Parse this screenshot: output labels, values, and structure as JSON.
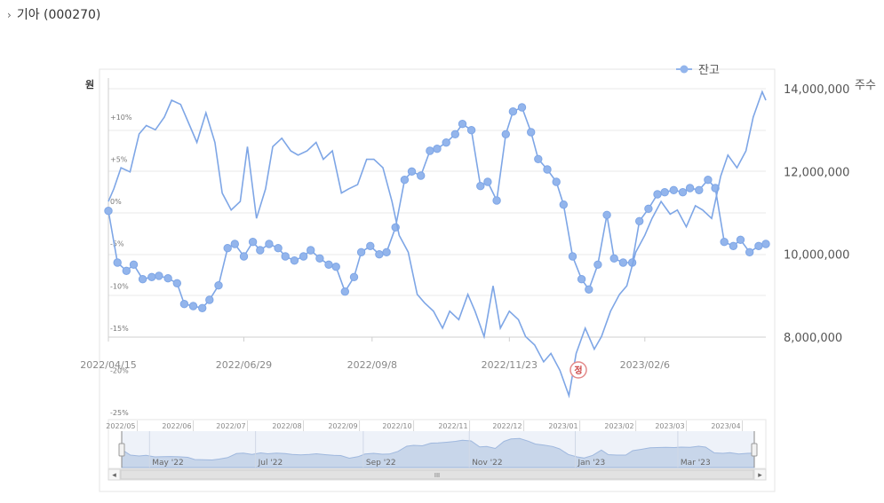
{
  "header": {
    "caret": "›",
    "title": "기아 (000270)"
  },
  "chart_data": {
    "type": "line",
    "left_unit": "원",
    "right_unit": "주수",
    "legend": {
      "label": "잔고",
      "placement": "top-right"
    },
    "y_left_ticks": [
      "+10%",
      "+5%",
      "0%",
      "-5%",
      "-10%",
      "-15%",
      "-20%",
      "-25%"
    ],
    "y_right_ticks": [
      "14,000,000",
      "12,000,000",
      "10,000,000",
      "8,000,000"
    ],
    "y_right_values": [
      14000000,
      12000000,
      10000000,
      8000000
    ],
    "x_ticks": [
      "2022/04/15",
      "2022/06/29",
      "2022/09/8",
      "2022/11/23",
      "2023/02/6"
    ],
    "marker_label": "정",
    "series": [
      {
        "name": "잔고",
        "color": "#7ea6e6",
        "markers": true,
        "x": [
          "2022-04-15",
          "2022-04-20",
          "2022-04-25",
          "2022-04-29",
          "2022-05-04",
          "2022-05-09",
          "2022-05-13",
          "2022-05-18",
          "2022-05-23",
          "2022-05-27",
          "2022-06-01",
          "2022-06-06",
          "2022-06-10",
          "2022-06-15",
          "2022-06-20",
          "2022-06-24",
          "2022-06-29",
          "2022-07-04",
          "2022-07-08",
          "2022-07-13",
          "2022-07-18",
          "2022-07-22",
          "2022-07-27",
          "2022-08-01",
          "2022-08-05",
          "2022-08-10",
          "2022-08-15",
          "2022-08-19",
          "2022-08-24",
          "2022-08-29",
          "2022-09-02",
          "2022-09-07",
          "2022-09-12",
          "2022-09-16",
          "2022-09-21",
          "2022-09-26",
          "2022-09-30",
          "2022-10-05",
          "2022-10-10",
          "2022-10-14",
          "2022-10-19",
          "2022-10-24",
          "2022-10-28",
          "2022-11-02",
          "2022-11-07",
          "2022-11-11",
          "2022-11-16",
          "2022-11-21",
          "2022-11-25",
          "2022-11-30",
          "2022-12-05",
          "2022-12-09",
          "2022-12-14",
          "2022-12-19",
          "2022-12-23",
          "2022-12-28",
          "2023-01-02",
          "2023-01-06",
          "2023-01-11",
          "2023-01-16",
          "2023-01-20",
          "2023-01-25",
          "2023-01-30",
          "2023-02-03",
          "2023-02-08",
          "2023-02-13",
          "2023-02-17",
          "2023-02-22",
          "2023-02-27",
          "2023-03-03",
          "2023-03-08",
          "2023-03-13",
          "2023-03-17",
          "2023-03-22",
          "2023-03-27",
          "2023-03-31",
          "2023-04-05",
          "2023-04-10",
          "2023-04-14"
        ],
        "values": [
          11050000,
          9800000,
          9600000,
          9750000,
          9400000,
          9450000,
          9480000,
          9420000,
          9300000,
          8800000,
          8750000,
          8700000,
          8900000,
          9250000,
          10150000,
          10250000,
          9950000,
          10300000,
          10100000,
          10250000,
          10150000,
          9950000,
          9850000,
          9950000,
          10100000,
          9900000,
          9750000,
          9700000,
          9100000,
          9450000,
          10050000,
          10200000,
          10000000,
          10050000,
          10650000,
          11800000,
          12000000,
          11900000,
          12500000,
          12550000,
          12700000,
          12900000,
          13150000,
          13000000,
          11650000,
          11750000,
          11300000,
          12900000,
          13450000,
          13550000,
          12950000,
          12300000,
          12050000,
          11750000,
          11200000,
          9950000,
          9400000,
          9150000,
          9750000,
          10950000,
          9900000,
          9800000,
          9800000,
          10800000,
          11100000,
          11450000,
          11500000,
          11550000,
          11500000,
          11600000,
          11550000,
          11800000,
          11600000,
          10300000,
          10200000,
          10350000,
          10050000,
          10200000,
          10250000
        ]
      },
      {
        "name": "",
        "color": "#7ea6e6",
        "markers": false,
        "axis": "left",
        "x": [
          "2022-04-15",
          "2022-04-18",
          "2022-04-22",
          "2022-04-27",
          "2022-05-02",
          "2022-05-06",
          "2022-05-11",
          "2022-05-16",
          "2022-05-20",
          "2022-05-25",
          "2022-05-30",
          "2022-06-03",
          "2022-06-08",
          "2022-06-13",
          "2022-06-17",
          "2022-06-22",
          "2022-06-27",
          "2022-07-01",
          "2022-07-06",
          "2022-07-11",
          "2022-07-15",
          "2022-07-20",
          "2022-07-25",
          "2022-07-29",
          "2022-08-03",
          "2022-08-08",
          "2022-08-12",
          "2022-08-17",
          "2022-08-22",
          "2022-08-26",
          "2022-08-31",
          "2022-09-05",
          "2022-09-09",
          "2022-09-14",
          "2022-09-19",
          "2022-09-23",
          "2022-09-28",
          "2022-10-03",
          "2022-10-07",
          "2022-10-12",
          "2022-10-17",
          "2022-10-21",
          "2022-10-26",
          "2022-10-31",
          "2022-11-04",
          "2022-11-09",
          "2022-11-14",
          "2022-11-18",
          "2022-11-23",
          "2022-11-28",
          "2022-12-02",
          "2022-12-07",
          "2022-12-12",
          "2022-12-16",
          "2022-12-21",
          "2022-12-26",
          "2022-12-30",
          "2023-01-04",
          "2023-01-09",
          "2023-01-13",
          "2023-01-18",
          "2023-01-23",
          "2023-01-27",
          "2023-02-01",
          "2023-02-06",
          "2023-02-10",
          "2023-02-15",
          "2023-02-20",
          "2023-02-24",
          "2023-03-01",
          "2023-03-06",
          "2023-03-10",
          "2023-03-15",
          "2023-03-20",
          "2023-03-24",
          "2023-03-29",
          "2023-04-03",
          "2023-04-07",
          "2023-04-12",
          "2023-04-14"
        ],
        "values": [
          0.0,
          1.5,
          4.0,
          3.5,
          8.0,
          9.0,
          8.5,
          10.0,
          12.0,
          11.5,
          9.0,
          7.0,
          10.5,
          7.0,
          1.0,
          -1.0,
          0.0,
          6.5,
          -2.0,
          1.5,
          6.5,
          7.5,
          6.0,
          5.5,
          6.0,
          7.0,
          5.0,
          6.0,
          1.0,
          1.5,
          2.0,
          5.0,
          5.0,
          4.0,
          0.0,
          -4.0,
          -6.0,
          -11.0,
          -12.0,
          -13.0,
          -15.0,
          -13.0,
          -14.0,
          -11.0,
          -13.0,
          -16.0,
          -10.0,
          -15.0,
          -13.0,
          -14.0,
          -16.0,
          -17.0,
          -19.0,
          -18.0,
          -20.0,
          -23.0,
          -18.0,
          -15.0,
          -17.5,
          -16.0,
          -13.0,
          -11.0,
          -10.0,
          -6.0,
          -4.0,
          -2.0,
          0.0,
          -1.5,
          -1.0,
          -3.0,
          -0.5,
          -1.0,
          -2.0,
          3.0,
          5.5,
          4.0,
          6.0,
          10.0,
          13.0,
          12.0
        ]
      }
    ],
    "navigator": {
      "month_labels": [
        "2022/05",
        "2022/06",
        "2022/07",
        "2022/08",
        "2022/09",
        "2022/10",
        "2022/11",
        "2022/12",
        "2023/01",
        "2023/02",
        "2023/03",
        "2023/04"
      ],
      "range_labels": [
        "May '22",
        "Jul '22",
        "Sep '22",
        "Nov '22",
        "Jan '23",
        "Mar '23"
      ],
      "scrollbar_grip": "III",
      "scroll_left": "◂",
      "scroll_right": "▸"
    }
  }
}
